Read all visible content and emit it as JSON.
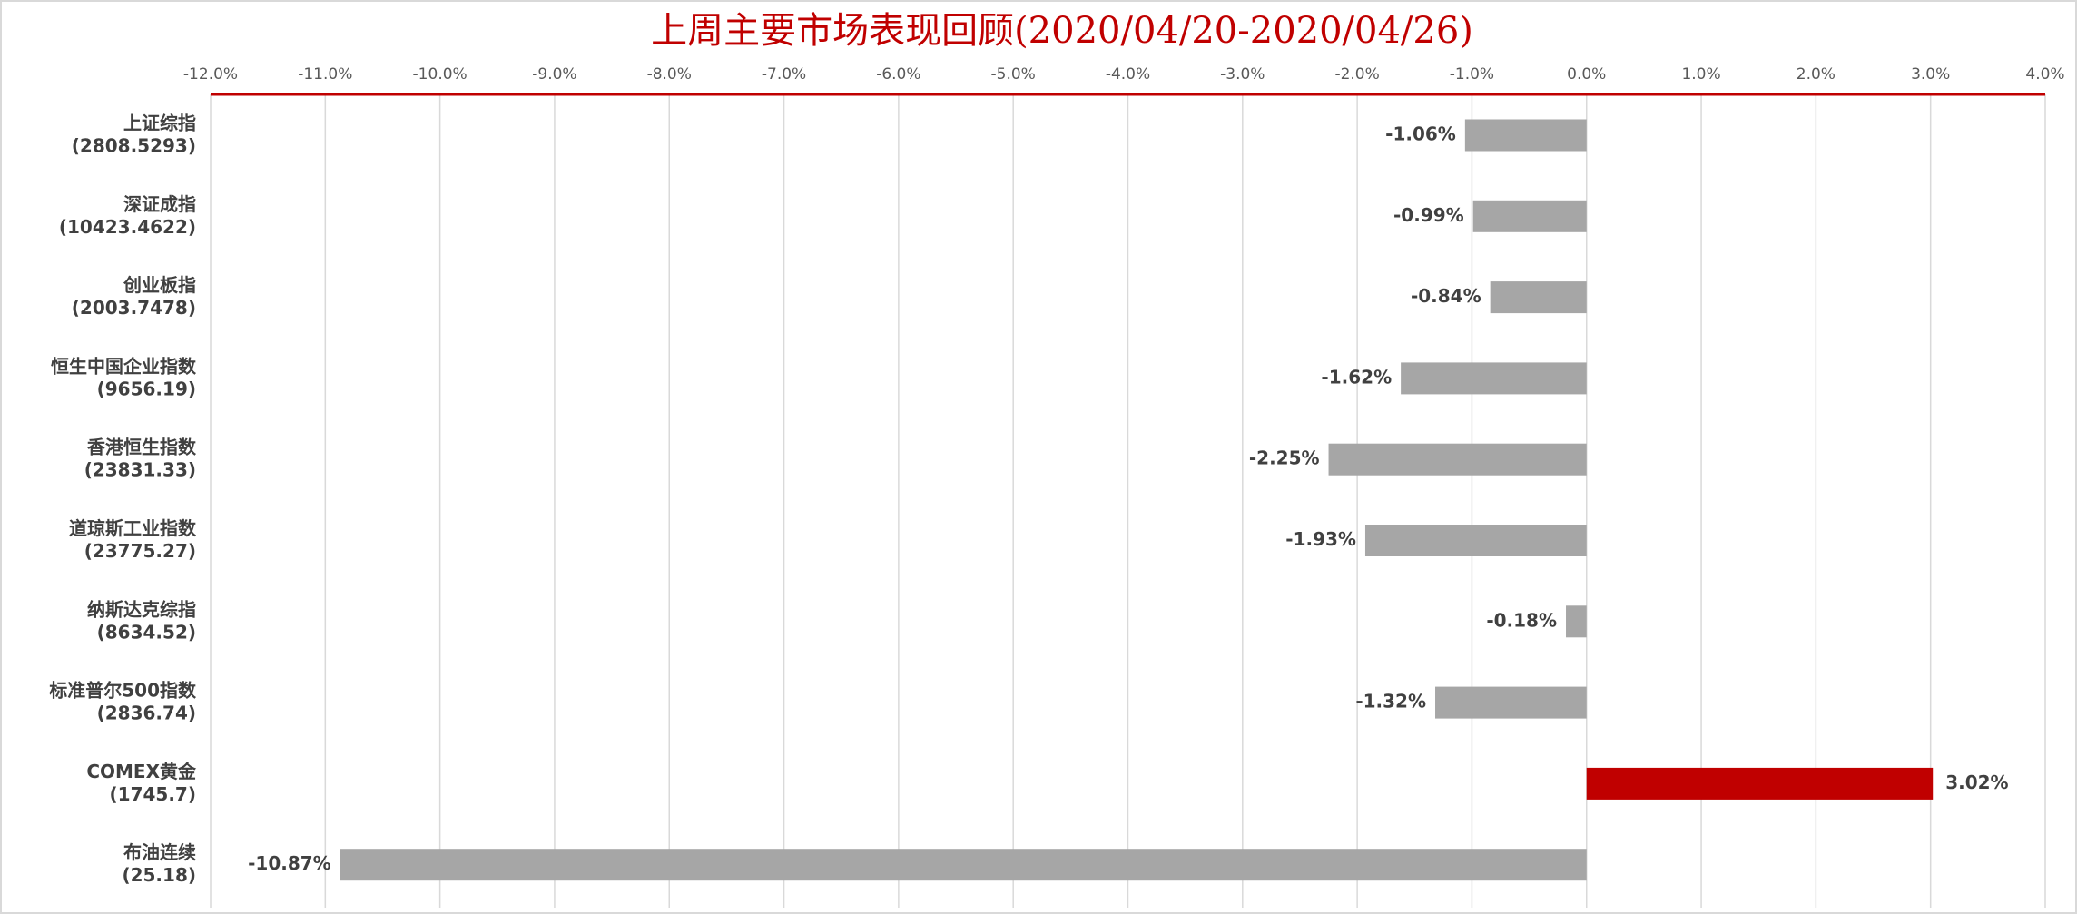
{
  "chart_data": {
    "type": "hbar",
    "title": "上周主要市场表现回顾(2020/04/20-2020/04/26)",
    "categories": [
      [
        "上证综指",
        "(2808.5293)"
      ],
      [
        "深证成指",
        "(10423.4622)"
      ],
      [
        "创业板指",
        "(2003.7478)"
      ],
      [
        "恒生中国企业指数",
        "(9656.19)"
      ],
      [
        "香港恒生指数",
        "(23831.33)"
      ],
      [
        "道琼斯工业指数",
        "(23775.27)"
      ],
      [
        "纳斯达克综指",
        "(8634.52)"
      ],
      [
        "标准普尔500指数",
        "(2836.74)"
      ],
      [
        "COMEX黄金",
        "(1745.7)"
      ],
      [
        "布油连续",
        "(25.18)"
      ]
    ],
    "values": [
      -1.06,
      -0.99,
      -0.84,
      -1.62,
      -2.25,
      -1.93,
      -0.18,
      -1.32,
      3.02,
      -10.87
    ],
    "value_labels": [
      "-1.06%",
      "-0.99%",
      "-0.84%",
      "-1.62%",
      "-2.25%",
      "-1.93%",
      "-0.18%",
      "-1.32%",
      "3.02%",
      "-10.87%"
    ],
    "colors": [
      "#a6a6a6",
      "#a6a6a6",
      "#a6a6a6",
      "#a6a6a6",
      "#a6a6a6",
      "#a6a6a6",
      "#a6a6a6",
      "#a6a6a6",
      "#c00000",
      "#a6a6a6"
    ],
    "xlim": [
      -12,
      4
    ],
    "xticks": [
      {
        "value": -12,
        "label": "-12.0%"
      },
      {
        "value": -11,
        "label": "-11.0%"
      },
      {
        "value": -10,
        "label": "-10.0%"
      },
      {
        "value": -9,
        "label": "-9.0%"
      },
      {
        "value": -8,
        "label": "-8.0%"
      },
      {
        "value": -7,
        "label": "-7.0%"
      },
      {
        "value": -6,
        "label": "-6.0%"
      },
      {
        "value": -5,
        "label": "-5.0%"
      },
      {
        "value": -4,
        "label": "-4.0%"
      },
      {
        "value": -3,
        "label": "-3.0%"
      },
      {
        "value": -2,
        "label": "-2.0%"
      },
      {
        "value": -1,
        "label": "-1.0%"
      },
      {
        "value": 0,
        "label": "0.0%"
      },
      {
        "value": 1,
        "label": "1.0%"
      },
      {
        "value": 2,
        "label": "2.0%"
      },
      {
        "value": 3,
        "label": "3.0%"
      },
      {
        "value": 4,
        "label": "4.0%"
      }
    ],
    "grid": true
  }
}
